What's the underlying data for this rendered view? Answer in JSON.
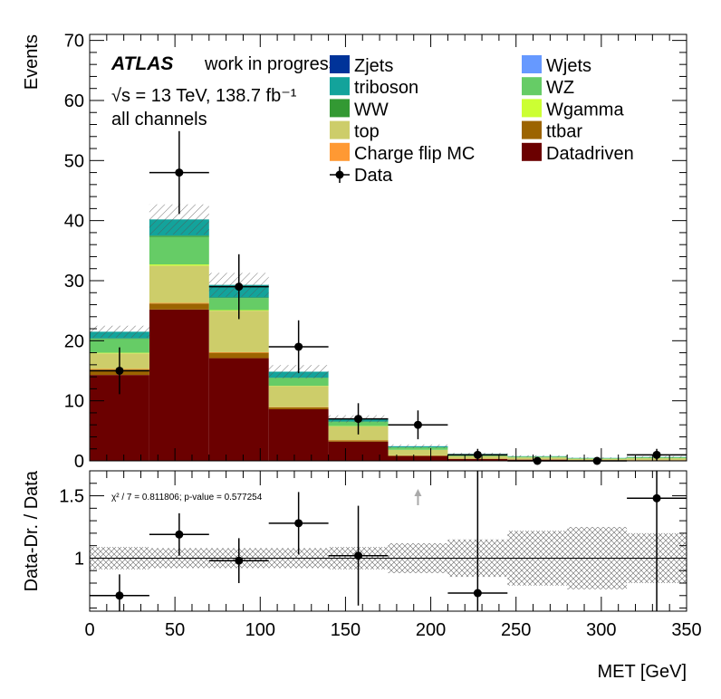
{
  "chart_data": [
    {
      "type": "bar",
      "stacked": true,
      "bin_edges": [
        0,
        35,
        70,
        105,
        140,
        175,
        210,
        245,
        280,
        315,
        350
      ],
      "xlim": [
        0,
        350
      ],
      "ylim": [
        0,
        71
      ],
      "ylabel": "Events",
      "xlabel": "MET [GeV]",
      "y_ticks": [
        0,
        10,
        20,
        30,
        40,
        50,
        60,
        70
      ],
      "x_ticks": [
        0,
        50,
        100,
        150,
        200,
        250,
        300,
        350
      ],
      "atlas_label": "ATLAS",
      "status_label": "work in progress",
      "energy_label": "√s = 13 TeV, 138.7 fb⁻¹",
      "channel_label": "all channels",
      "series": [
        {
          "name": "Datadriven",
          "color": "#6b0000",
          "values": [
            14.3,
            25.2,
            17.1,
            8.6,
            3.2,
            0.8,
            0.3,
            0.2,
            0.1,
            0.1
          ]
        },
        {
          "name": "ttbar",
          "color": "#9c6400",
          "values": [
            0.9,
            1.0,
            0.9,
            0.3,
            0.2,
            0.1,
            0.05,
            0.05,
            0.02,
            0.02
          ]
        },
        {
          "name": "Charge flip MC",
          "color": "#ff9933",
          "values": [
            0.1,
            0.1,
            0.1,
            0.05,
            0.05,
            0.02,
            0.01,
            0.01,
            0.01,
            0.01
          ]
        },
        {
          "name": "top",
          "color": "#cdcd6a",
          "values": [
            2.6,
            6.2,
            6.9,
            3.5,
            2.3,
            0.9,
            0.4,
            0.3,
            0.2,
            0.3
          ]
        },
        {
          "name": "Wgamma",
          "color": "#ccff33",
          "values": [
            0.1,
            0.2,
            0.1,
            0.05,
            0.05,
            0.02,
            0.02,
            0.01,
            0.01,
            0.01
          ]
        },
        {
          "name": "WZ",
          "color": "#66cc66",
          "values": [
            2.3,
            4.6,
            2.0,
            1.3,
            0.7,
            0.4,
            0.25,
            0.15,
            0.1,
            0.15
          ]
        },
        {
          "name": "WW",
          "color": "#339933",
          "values": [
            0.1,
            0.2,
            0.1,
            0.05,
            0.05,
            0.02,
            0.01,
            0.01,
            0.01,
            0.01
          ]
        },
        {
          "name": "triboson",
          "color": "#13a39b",
          "values": [
            1.1,
            2.7,
            2.1,
            1.0,
            0.45,
            0.18,
            0.12,
            0.05,
            0.04,
            0.04
          ]
        },
        {
          "name": "Wjets",
          "color": "#6699ff",
          "values": [
            0,
            0,
            0,
            0,
            0,
            0,
            0,
            0,
            0,
            0
          ]
        },
        {
          "name": "Zjets",
          "color": "#003399",
          "values": [
            0,
            0,
            0,
            0,
            0,
            0,
            0,
            0,
            0,
            0
          ]
        }
      ],
      "data": {
        "name": "Data",
        "values": [
          15,
          48,
          29,
          19,
          7,
          6,
          1,
          0,
          0,
          1
        ],
        "errors": [
          3.9,
          6.9,
          5.4,
          4.4,
          2.6,
          2.4,
          1,
          0,
          0,
          1
        ]
      },
      "mc_uncertainty": [
        1.0,
        2.5,
        2.0,
        1.1,
        0.6,
        0.3,
        0.2,
        0.15,
        0.1,
        0.15
      ],
      "legend": {
        "placement": "top-right",
        "columns": [
          [
            "Zjets",
            "triboson",
            "WW",
            "top",
            "Charge flip MC",
            "Data"
          ],
          [
            "Wjets",
            "WZ",
            "Wgamma",
            "ttbar",
            "Datadriven"
          ]
        ]
      }
    },
    {
      "type": "scatter",
      "bin_edges": [
        0,
        35,
        70,
        105,
        140,
        175,
        210,
        245,
        280,
        315,
        350
      ],
      "xlim": [
        0,
        350
      ],
      "ylim": [
        0.575,
        1.7
      ],
      "ylabel": "Data-Dr. / Data",
      "xlabel": "MET [GeV]",
      "y_ticks": [
        1,
        1.5
      ],
      "x_ticks": [
        0,
        50,
        100,
        150,
        200,
        250,
        300,
        350
      ],
      "reference_line": 1,
      "chi2_text": "χ² / 7 = 0.811806; p-value = 0.577254",
      "points": [
        {
          "x": 17.5,
          "y": 0.7,
          "err": 0.17
        },
        {
          "x": 52.5,
          "y": 1.19,
          "err": 0.17
        },
        {
          "x": 87.5,
          "y": 0.98,
          "err": 0.18
        },
        {
          "x": 122.5,
          "y": 1.28,
          "err": 0.25
        },
        {
          "x": 157.5,
          "y": 1.02,
          "err": 0.4
        },
        {
          "x": 227.5,
          "y": 0.72,
          "err": 1.0
        },
        {
          "x": 332.5,
          "y": 1.48,
          "err": 1.0
        }
      ],
      "offscale_arrow_x": 192.5,
      "band_halfwidth": [
        0.09,
        0.08,
        0.08,
        0.08,
        0.09,
        0.12,
        0.15,
        0.22,
        0.25,
        0.2
      ]
    }
  ]
}
